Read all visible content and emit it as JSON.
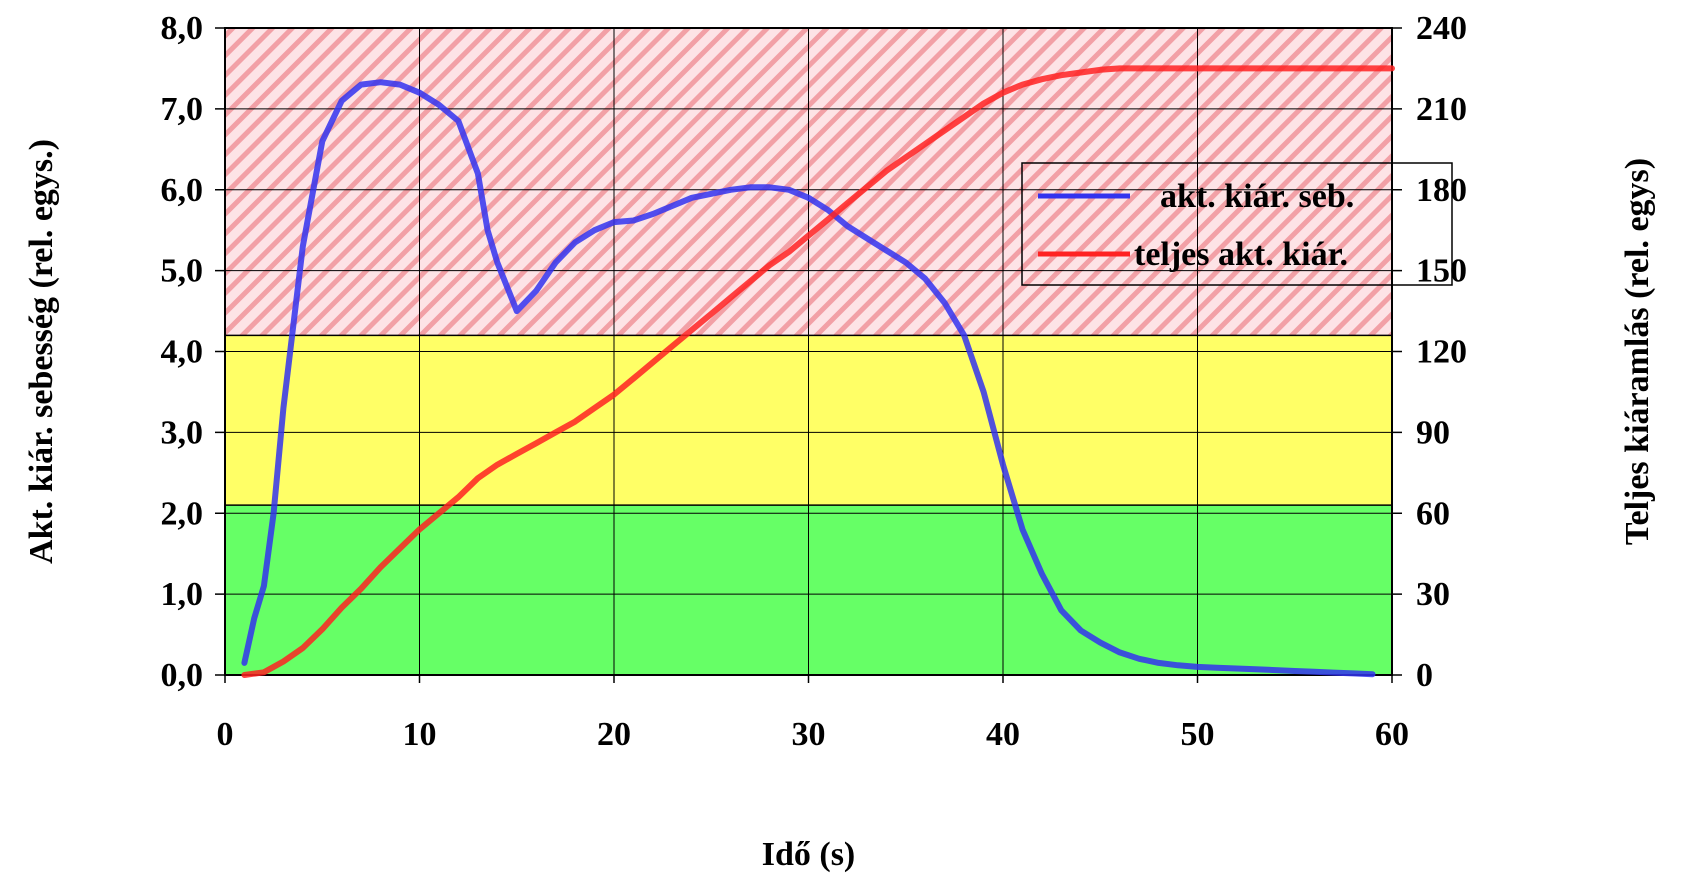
{
  "chart_data": {
    "type": "line",
    "xlabel": "Idő (s)",
    "ylabel_left": "Akt. kiár. sebesség (rel. egys.)",
    "ylabel_right": "Teljes kiáramlás (rel. egys)",
    "xlim": [
      0,
      60
    ],
    "ylim_left": [
      0,
      8
    ],
    "ylim_right": [
      0,
      240
    ],
    "x_ticks": [
      "0",
      "10",
      "20",
      "30",
      "40",
      "50",
      "60"
    ],
    "y_left_ticks": [
      "0,0",
      "1,0",
      "2,0",
      "3,0",
      "4,0",
      "5,0",
      "6,0",
      "7,0",
      "8,0"
    ],
    "y_right_ticks": [
      "0",
      "30",
      "60",
      "90",
      "120",
      "150",
      "180",
      "210",
      "240"
    ],
    "grid": true,
    "legend_position": "top-right",
    "background_bands": [
      {
        "from": 0,
        "to": 2.1,
        "color": "#66ff66",
        "pattern": "solid"
      },
      {
        "from": 2.1,
        "to": 4.2,
        "color": "#ffff66",
        "pattern": "solid"
      },
      {
        "from": 4.2,
        "to": 8.0,
        "color": "#f2a0a6",
        "pattern": "hatched"
      }
    ],
    "series": [
      {
        "name": "akt. kiár. seb.",
        "axis": "left",
        "color": "#3333ee",
        "x": [
          1,
          1.5,
          2,
          2.5,
          3,
          3.5,
          4,
          5,
          6,
          7,
          8,
          9,
          10,
          11,
          12,
          13,
          13.5,
          14,
          15,
          16,
          17,
          18,
          19,
          20,
          21,
          22,
          23,
          24,
          25,
          26,
          27,
          28,
          29,
          30,
          31,
          32,
          33,
          34,
          35,
          36,
          37,
          38,
          39,
          40,
          41,
          42,
          43,
          44,
          45,
          46,
          47,
          48,
          49,
          50,
          51,
          52,
          53,
          54,
          55,
          56,
          57,
          58,
          59
        ],
        "y": [
          0.15,
          0.7,
          1.1,
          2.0,
          3.3,
          4.3,
          5.3,
          6.6,
          7.1,
          7.3,
          7.33,
          7.3,
          7.2,
          7.05,
          6.85,
          6.2,
          5.5,
          5.1,
          4.5,
          4.75,
          5.1,
          5.35,
          5.5,
          5.6,
          5.62,
          5.7,
          5.8,
          5.9,
          5.95,
          6.0,
          6.03,
          6.03,
          6.0,
          5.9,
          5.75,
          5.55,
          5.4,
          5.25,
          5.1,
          4.9,
          4.6,
          4.2,
          3.5,
          2.6,
          1.8,
          1.25,
          0.8,
          0.55,
          0.4,
          0.28,
          0.2,
          0.15,
          0.12,
          0.1,
          0.09,
          0.08,
          0.07,
          0.06,
          0.05,
          0.04,
          0.03,
          0.02,
          0.01
        ]
      },
      {
        "name": "teljes akt. kiár.",
        "axis": "right",
        "color": "#ff2222",
        "x": [
          1,
          2,
          3,
          4,
          5,
          6,
          7,
          8,
          9,
          10,
          11,
          12,
          13,
          14,
          15,
          16,
          17,
          18,
          19,
          20,
          21,
          22,
          23,
          24,
          25,
          26,
          27,
          28,
          29,
          30,
          31,
          32,
          33,
          34,
          35,
          36,
          37,
          38,
          39,
          40,
          41,
          42,
          43,
          44,
          45,
          46,
          47,
          48,
          49,
          50,
          51,
          52,
          53,
          54,
          55,
          56,
          57,
          58,
          59,
          60
        ],
        "y": [
          0,
          1,
          5,
          10,
          17,
          25,
          32,
          40,
          47,
          54,
          60,
          66,
          73,
          78,
          82,
          86,
          90,
          94,
          99,
          104,
          110,
          116,
          122,
          128,
          134,
          140,
          146,
          152,
          157,
          163,
          169,
          175,
          181,
          187,
          192,
          197,
          202,
          207,
          212,
          216,
          219,
          221,
          222.5,
          223.5,
          224.5,
          225,
          225,
          225,
          225,
          225,
          225,
          225,
          225,
          225,
          225,
          225,
          225,
          225,
          225,
          225
        ]
      }
    ]
  }
}
